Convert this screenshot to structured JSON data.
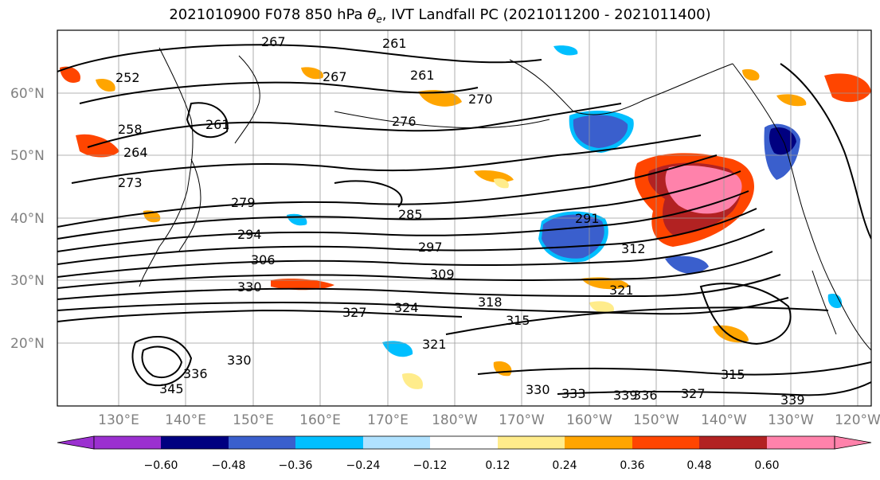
{
  "title": {
    "prefix": "2021010900 F078 850 hPa ",
    "theta_symbol": "θ",
    "theta_sub": "e",
    "suffix": ", IVT Landfall PC (2021011200 - 2021011400)"
  },
  "map": {
    "lat_labels": [
      "60°N",
      "50°N",
      "40°N",
      "30°N",
      "20°N"
    ],
    "lon_labels": [
      "130°E",
      "140°E",
      "150°E",
      "160°E",
      "170°E",
      "180°W",
      "170°W",
      "160°W",
      "150°W",
      "140°W",
      "130°W",
      "120°W"
    ],
    "contour_labels": [
      "267",
      "261",
      "261",
      "267",
      "270",
      "252",
      "258",
      "264",
      "261",
      "276",
      "273",
      "279",
      "285",
      "291",
      "294",
      "297",
      "306",
      "309",
      "312",
      "330",
      "327",
      "324",
      "318",
      "315",
      "321",
      "330",
      "333",
      "336",
      "339",
      "327",
      "315",
      "339",
      "345",
      "336",
      "330",
      "321"
    ],
    "colors": {
      "deep_purple": "#9b30d0",
      "navy": "#000080",
      "royal_blue": "#3a5fcd",
      "deep_sky": "#00bfff",
      "light_sky": "#b0e2ff",
      "white": "#ffffff",
      "light_yellow": "#ffec8b",
      "orange": "#ffa500",
      "orange_red": "#ff4500",
      "firebrick": "#b22222",
      "pink": "#ff82ab"
    }
  },
  "colorbar": {
    "tick_labels": [
      "−0.60",
      "−0.48",
      "−0.36",
      "−0.24",
      "−0.12",
      "0.12",
      "0.24",
      "0.36",
      "0.48",
      "0.60"
    ],
    "bins": [
      "#ffffff",
      "#000080",
      "#3a5fcd",
      "#00bfff",
      "#b0e2ff",
      "#ffffff",
      "#ffec8b",
      "#ffa500",
      "#ff4500",
      "#b22222",
      "#ff82ab"
    ],
    "under_color": "#9b30d0",
    "over_color": "#ff82ab"
  }
}
